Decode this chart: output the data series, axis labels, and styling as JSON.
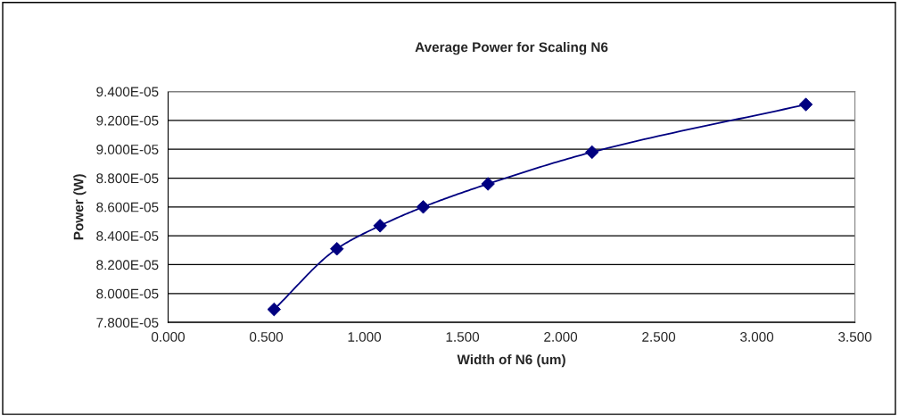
{
  "chart_data": {
    "type": "line",
    "title": "Average Power for Scaling N6",
    "xlabel": "Width of N6 (um)",
    "ylabel": "Power (W)",
    "x": [
      0.54,
      0.86,
      1.08,
      1.3,
      1.63,
      2.16,
      3.25
    ],
    "series": [
      {
        "color": "#000080",
        "values": [
          7.89e-05,
          8.31e-05,
          8.47e-05,
          8.6e-05,
          8.76e-05,
          8.98e-05,
          9.31e-05
        ]
      }
    ],
    "marker": "diamond",
    "line_style": "solid",
    "grid": "y",
    "legend": false,
    "xlim": [
      0,
      3.5
    ],
    "xticks": [
      {
        "value": 0,
        "label": "0.000"
      },
      {
        "value": 0.5,
        "label": "0.500"
      },
      {
        "value": 1,
        "label": "1.000"
      },
      {
        "value": 1.5,
        "label": "1.500"
      },
      {
        "value": 2,
        "label": "2.000"
      },
      {
        "value": 2.5,
        "label": "2.500"
      },
      {
        "value": 3,
        "label": "3.000"
      },
      {
        "value": 3.5,
        "label": "3.500"
      }
    ],
    "ylim": [
      7.8e-05,
      9.4e-05
    ],
    "yticks": [
      {
        "value": 7.8e-05,
        "label": "7.800E-05"
      },
      {
        "value": 8e-05,
        "label": "8.000E-05"
      },
      {
        "value": 8.2e-05,
        "label": "8.200E-05"
      },
      {
        "value": 8.4e-05,
        "label": "8.400E-05"
      },
      {
        "value": 8.6e-05,
        "label": "8.600E-05"
      },
      {
        "value": 8.8e-05,
        "label": "8.800E-05"
      },
      {
        "value": 9e-05,
        "label": "9.000E-05"
      },
      {
        "value": 9.2e-05,
        "label": "9.200E-05"
      },
      {
        "value": 9.4e-05,
        "label": "9.400E-05"
      }
    ]
  }
}
